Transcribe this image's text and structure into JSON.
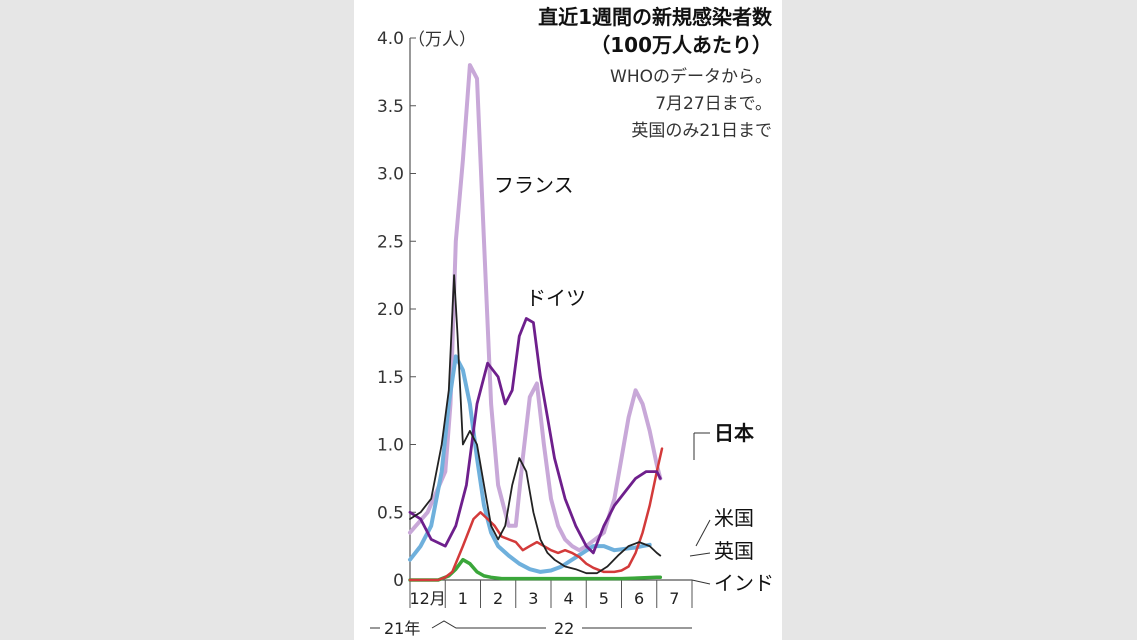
{
  "chart_data": {
    "type": "line",
    "title": "直近1週間の新規感染者数",
    "subtitle": "（100万人あたり）",
    "notes": [
      "WHOのデータから。",
      "7月27日まで。",
      "英国のみ21日まで"
    ],
    "y_unit": "（万人）",
    "ylim": [
      0,
      4.0
    ],
    "y_ticks": [
      "0",
      "0.5",
      "1.0",
      "1.5",
      "2.0",
      "2.5",
      "3.0",
      "3.5",
      "4.0"
    ],
    "x_months": [
      "12月",
      "1",
      "2",
      "3",
      "4",
      "5",
      "6",
      "7"
    ],
    "year_labels": [
      "21年",
      "22"
    ],
    "grid": false,
    "series": [
      {
        "name": "フランス",
        "color": "#c8a8d8",
        "x": [
          0.0,
          0.5,
          1.0,
          1.15,
          1.3,
          1.5,
          1.7,
          1.9,
          2.1,
          2.3,
          2.5,
          2.8,
          3.0,
          3.2,
          3.4,
          3.6,
          3.8,
          4.0,
          4.2,
          4.4,
          4.6,
          4.8,
          5.0,
          5.5,
          5.8,
          6.0,
          6.2,
          6.4,
          6.6,
          6.8,
          7.0,
          7.1
        ],
        "y": [
          0.35,
          0.5,
          0.8,
          1.3,
          2.5,
          3.1,
          3.8,
          3.7,
          2.5,
          1.3,
          0.7,
          0.4,
          0.4,
          0.9,
          1.35,
          1.45,
          1.0,
          0.6,
          0.4,
          0.3,
          0.25,
          0.22,
          0.25,
          0.35,
          0.6,
          0.9,
          1.2,
          1.4,
          1.3,
          1.1,
          0.85,
          0.75
        ]
      },
      {
        "name": "ドイツ",
        "color": "#6e1f8c",
        "x": [
          0.0,
          0.3,
          0.6,
          1.0,
          1.3,
          1.6,
          1.9,
          2.2,
          2.5,
          2.7,
          2.9,
          3.1,
          3.3,
          3.5,
          3.7,
          3.9,
          4.1,
          4.4,
          4.7,
          5.0,
          5.2,
          5.5,
          5.8,
          6.1,
          6.4,
          6.7,
          7.0,
          7.1
        ],
        "y": [
          0.5,
          0.45,
          0.3,
          0.25,
          0.4,
          0.7,
          1.3,
          1.6,
          1.5,
          1.3,
          1.4,
          1.8,
          1.93,
          1.9,
          1.5,
          1.2,
          0.9,
          0.6,
          0.4,
          0.25,
          0.2,
          0.4,
          0.55,
          0.65,
          0.75,
          0.8,
          0.8,
          0.75
        ]
      },
      {
        "name": "米国",
        "color": "#222222",
        "x": [
          0.0,
          0.3,
          0.6,
          0.9,
          1.1,
          1.25,
          1.35,
          1.5,
          1.7,
          1.9,
          2.1,
          2.3,
          2.5,
          2.7,
          2.9,
          3.1,
          3.3,
          3.5,
          3.7,
          3.9,
          4.1,
          4.4,
          4.7,
          5.0,
          5.3,
          5.6,
          5.9,
          6.2,
          6.5,
          6.8,
          7.0,
          7.1
        ],
        "y": [
          0.45,
          0.5,
          0.6,
          1.0,
          1.4,
          2.25,
          1.8,
          1.0,
          1.1,
          1.0,
          0.7,
          0.4,
          0.3,
          0.4,
          0.7,
          0.9,
          0.8,
          0.5,
          0.3,
          0.2,
          0.15,
          0.1,
          0.08,
          0.05,
          0.05,
          0.1,
          0.18,
          0.25,
          0.28,
          0.25,
          0.2,
          0.18
        ]
      },
      {
        "name": "英国",
        "color": "#6fb0dc",
        "x": [
          0.0,
          0.3,
          0.6,
          0.9,
          1.1,
          1.3,
          1.5,
          1.7,
          1.9,
          2.1,
          2.3,
          2.5,
          2.8,
          3.1,
          3.4,
          3.7,
          4.0,
          4.3,
          4.6,
          4.9,
          5.2,
          5.5,
          5.8,
          6.1,
          6.4,
          6.6,
          6.8
        ],
        "y": [
          0.15,
          0.25,
          0.4,
          0.8,
          1.3,
          1.65,
          1.55,
          1.3,
          0.9,
          0.55,
          0.35,
          0.25,
          0.18,
          0.12,
          0.08,
          0.06,
          0.07,
          0.1,
          0.15,
          0.2,
          0.25,
          0.25,
          0.22,
          0.23,
          0.24,
          0.25,
          0.26
        ]
      },
      {
        "name": "日本",
        "color": "#d33a3a",
        "x": [
          0.0,
          0.4,
          0.8,
          1.0,
          1.2,
          1.5,
          1.8,
          2.0,
          2.2,
          2.4,
          2.6,
          2.8,
          3.0,
          3.2,
          3.4,
          3.6,
          3.8,
          4.0,
          4.2,
          4.4,
          4.6,
          4.8,
          5.0,
          5.2,
          5.5,
          5.8,
          6.0,
          6.2,
          6.4,
          6.6,
          6.8,
          7.0,
          7.15
        ],
        "y": [
          0.0,
          0.0,
          0.0,
          0.02,
          0.06,
          0.25,
          0.45,
          0.5,
          0.45,
          0.4,
          0.32,
          0.3,
          0.28,
          0.22,
          0.25,
          0.28,
          0.25,
          0.22,
          0.2,
          0.22,
          0.2,
          0.17,
          0.12,
          0.09,
          0.06,
          0.06,
          0.07,
          0.1,
          0.2,
          0.35,
          0.55,
          0.8,
          0.97
        ]
      },
      {
        "name": "インド",
        "color": "#3aa63a",
        "x": [
          0.0,
          0.8,
          1.1,
          1.3,
          1.5,
          1.7,
          1.9,
          2.1,
          2.3,
          2.6,
          3.0,
          4.0,
          5.0,
          6.0,
          7.0,
          7.1
        ],
        "y": [
          0.0,
          0.0,
          0.03,
          0.08,
          0.15,
          0.12,
          0.06,
          0.03,
          0.02,
          0.01,
          0.01,
          0.01,
          0.01,
          0.01,
          0.02,
          0.02
        ]
      }
    ],
    "series_labels": [
      "フランス",
      "ドイツ",
      "日本",
      "米国",
      "英国",
      "インド"
    ]
  }
}
